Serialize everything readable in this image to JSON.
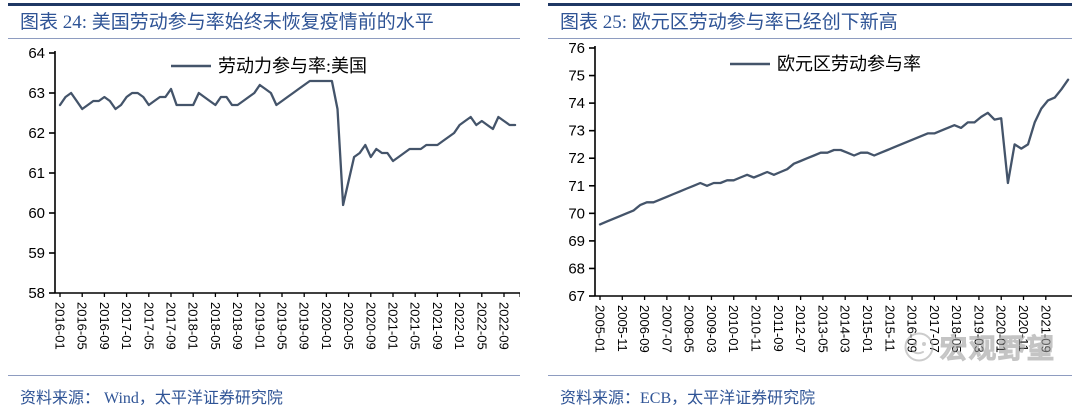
{
  "left_panel": {
    "title": "图表 24: 美国劳动参与率始终未恢复疫情前的水平",
    "source": "资料来源：  Wind，太平洋证券研究院"
  },
  "right_panel": {
    "title": "图表 25:  欧元区劳动参与率已经创下新高",
    "source": "资料来源：ECB，太平洋证券研究院",
    "watermark_text": "宏观野望"
  },
  "colors": {
    "series_line": "#44546A",
    "title_text": "#2F5496",
    "thick_rule": "#1F3864",
    "thin_rule": "#8E9CC0",
    "axis": "#000000",
    "watermark": "#BDBDBD"
  },
  "chart_data": [
    {
      "type": "line",
      "title": "图表 24: 美国劳动参与率始终未恢复疫情前的水平",
      "legend": "劳动力参与率:美国",
      "ylabel": "",
      "xlabel": "",
      "ylim": [
        58,
        64
      ],
      "y_ticks": [
        58,
        59,
        60,
        61,
        62,
        63,
        64
      ],
      "x_start": "2016-01",
      "x_frequency_months": 1,
      "x_tick_interval_months": 4,
      "x_tick_labels": [
        "2016-01",
        "2016-05",
        "2016-09",
        "2017-01",
        "2017-05",
        "2017-09",
        "2018-01",
        "2018-05",
        "2018-09",
        "2019-01",
        "2019-05",
        "2019-09",
        "2020-01",
        "2020-05",
        "2020-09",
        "2021-01",
        "2021-05",
        "2021-09",
        "2022-01",
        "2022-05",
        "2022-09"
      ],
      "values": [
        62.7,
        62.9,
        63.0,
        62.8,
        62.6,
        62.7,
        62.8,
        62.8,
        62.9,
        62.8,
        62.6,
        62.7,
        62.9,
        63.0,
        63.0,
        62.9,
        62.7,
        62.8,
        62.9,
        62.9,
        63.1,
        62.7,
        62.7,
        62.7,
        62.7,
        63.0,
        62.9,
        62.8,
        62.7,
        62.9,
        62.9,
        62.7,
        62.7,
        62.8,
        62.9,
        63.0,
        63.2,
        63.1,
        63.0,
        62.7,
        62.8,
        62.9,
        63.0,
        63.1,
        63.2,
        63.3,
        63.3,
        63.3,
        63.3,
        63.3,
        62.6,
        60.2,
        60.8,
        61.4,
        61.5,
        61.7,
        61.4,
        61.6,
        61.5,
        61.5,
        61.3,
        61.4,
        61.5,
        61.6,
        61.6,
        61.6,
        61.7,
        61.7,
        61.7,
        61.8,
        61.9,
        62.0,
        62.2,
        62.3,
        62.4,
        62.2,
        62.3,
        62.2,
        62.1,
        62.4,
        62.3,
        62.2,
        62.2
      ],
      "legend_position": "top-center",
      "grid": false,
      "line_color": "#44546A"
    },
    {
      "type": "line",
      "title": "图表 25: 欧元区劳动参与率已经创下新高",
      "legend": "欧元区劳动参与率",
      "ylabel": "",
      "xlabel": "",
      "ylim": [
        67,
        76
      ],
      "y_ticks": [
        67,
        68,
        69,
        70,
        71,
        72,
        73,
        74,
        75,
        76
      ],
      "x_start": "2005-01",
      "x_frequency_months": 3,
      "x_tick_interval_months": 10,
      "x_tick_labels": [
        "2005-01",
        "2005-11",
        "2006-09",
        "2007-07",
        "2008-05",
        "2009-03",
        "2010-01",
        "2010-11",
        "2011-09",
        "2012-07",
        "2013-05",
        "2014-03",
        "2015-01",
        "2015-11",
        "2016-09",
        "2017-07",
        "2018-05",
        "2019-03",
        "2020-01",
        "2020-11",
        "2021-09"
      ],
      "values": [
        69.6,
        69.7,
        69.8,
        69.9,
        70.0,
        70.1,
        70.3,
        70.4,
        70.4,
        70.5,
        70.6,
        70.7,
        70.8,
        70.9,
        71.0,
        71.1,
        71.0,
        71.1,
        71.1,
        71.2,
        71.2,
        71.3,
        71.4,
        71.3,
        71.4,
        71.5,
        71.4,
        71.5,
        71.6,
        71.8,
        71.9,
        72.0,
        72.1,
        72.2,
        72.2,
        72.3,
        72.3,
        72.2,
        72.1,
        72.2,
        72.2,
        72.1,
        72.2,
        72.3,
        72.4,
        72.5,
        72.6,
        72.7,
        72.8,
        72.9,
        72.9,
        73.0,
        73.1,
        73.2,
        73.1,
        73.3,
        73.3,
        73.5,
        73.65,
        73.4,
        73.45,
        71.1,
        72.5,
        72.35,
        72.5,
        73.3,
        73.8,
        74.1,
        74.2,
        74.5,
        74.85
      ],
      "legend_position": "top-center",
      "grid": false,
      "line_color": "#44546A"
    }
  ]
}
